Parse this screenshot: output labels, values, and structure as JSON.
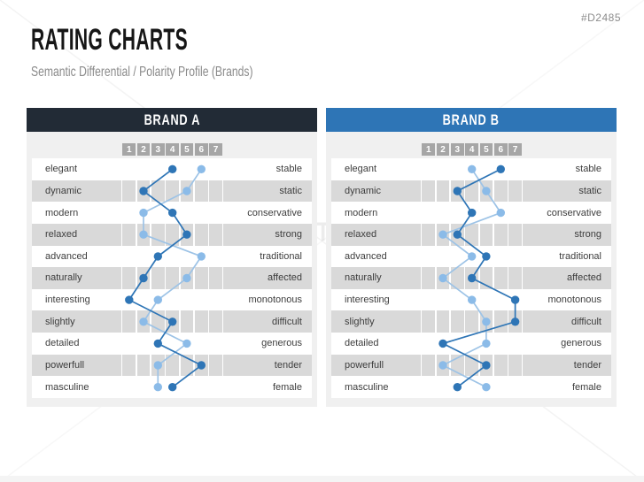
{
  "page": {
    "doc_id": "#D2485",
    "title": "RATING CHARTS",
    "subtitle": "Semantic Differential / Polarity Profile (Brands)",
    "watermark_text": "PRESENTATIONLOAD"
  },
  "colors": {
    "brand_a_header": "#222b36",
    "brand_b_header": "#2e75b6",
    "row_band_gray": "#d9d9d9",
    "panel_background": "#f0f0f0",
    "scale_tick_box": "#a6a6a6",
    "series_dark_blue": "#2e75b6",
    "series_light_blue": "#8bbbe8",
    "series_light_line": "#9dc3e6"
  },
  "chart_data": {
    "type": "line",
    "variant": "semantic-differential-polarity-profile",
    "grid": "alternating row bands with 7 scale cells, no legend",
    "legend": "none",
    "scale": {
      "min": 1,
      "max": 7,
      "ticks": [
        "1",
        "2",
        "3",
        "4",
        "5",
        "6",
        "7"
      ]
    },
    "attribute_pairs": [
      {
        "left": "elegant",
        "right": "stable"
      },
      {
        "left": "dynamic",
        "right": "static"
      },
      {
        "left": "modern",
        "right": "conservative"
      },
      {
        "left": "relaxed",
        "right": "strong"
      },
      {
        "left": "advanced",
        "right": "traditional"
      },
      {
        "left": "naturally",
        "right": "affected"
      },
      {
        "left": "interesting",
        "right": "monotonous"
      },
      {
        "left": "slightly",
        "right": "difficult"
      },
      {
        "left": "detailed",
        "right": "generous"
      },
      {
        "left": "powerfull",
        "right": "tender"
      },
      {
        "left": "masculine",
        "right": "female"
      }
    ],
    "charts": [
      {
        "title": "BRAND A",
        "header_color": "#222b36",
        "series": [
          {
            "name": "profile-dark-blue",
            "color": "#2e75b6",
            "line_color": "#2e75b6",
            "values": [
              4,
              2,
              4,
              5,
              3,
              2,
              1,
              4,
              3,
              6,
              4
            ]
          },
          {
            "name": "profile-light-blue",
            "color": "#8bbbe8",
            "line_color": "#9dc3e6",
            "values": [
              6,
              5,
              2,
              2,
              6,
              5,
              3,
              2,
              5,
              3,
              3
            ]
          }
        ]
      },
      {
        "title": "BRAND B",
        "header_color": "#2e75b6",
        "series": [
          {
            "name": "profile-dark-blue",
            "color": "#2e75b6",
            "line_color": "#2e75b6",
            "values": [
              6,
              3,
              4,
              3,
              5,
              4,
              7,
              7,
              2,
              5,
              3
            ]
          },
          {
            "name": "profile-light-blue",
            "color": "#8bbbe8",
            "line_color": "#9dc3e6",
            "values": [
              4,
              5,
              6,
              2,
              4,
              2,
              4,
              5,
              5,
              2,
              5
            ]
          }
        ]
      }
    ]
  }
}
